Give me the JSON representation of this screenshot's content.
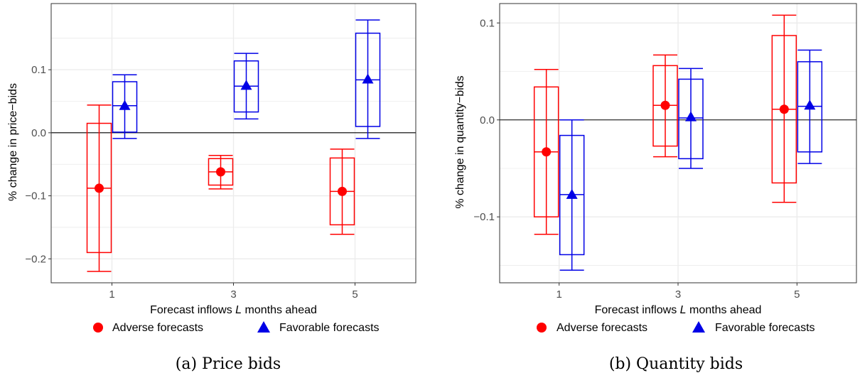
{
  "colors": {
    "adverse": "#ff0000",
    "favorable": "#0000e6",
    "grid": "#ebebeb",
    "zero_line": "#000000"
  },
  "legend": {
    "adverse_label": "Adverse forecasts",
    "favorable_label": "Favorable forecasts",
    "adverse_marker": "circle",
    "favorable_marker": "triangle"
  },
  "chart_data": [
    {
      "type": "boxplot",
      "caption": "(a) Price bids",
      "xlabel_pre": "Forecast inflows ",
      "xlabel_var": "L",
      "xlabel_post": " months ahead",
      "ylabel": "% change in price−bids",
      "categories": [
        "1",
        "3",
        "5"
      ],
      "ylim": [
        -0.238,
        0.205
      ],
      "yticks": [
        -0.2,
        -0.1,
        0.0,
        0.1
      ],
      "yticklabels": [
        "−0.2",
        "−0.1",
        "0.0",
        "0.1"
      ],
      "grid": true,
      "series": [
        {
          "name": "Adverse forecasts",
          "boxes": [
            {
              "whisker_low": -0.22,
              "box_low": -0.19,
              "median": -0.088,
              "box_high": 0.015,
              "whisker_high": 0.044,
              "point": -0.088
            },
            {
              "whisker_low": -0.089,
              "box_low": -0.083,
              "median": -0.062,
              "box_high": -0.041,
              "whisker_high": -0.036,
              "point": -0.062
            },
            {
              "whisker_low": -0.161,
              "box_low": -0.146,
              "median": -0.093,
              "box_high": -0.04,
              "whisker_high": -0.026,
              "point": -0.093
            }
          ]
        },
        {
          "name": "Favorable forecasts",
          "boxes": [
            {
              "whisker_low": -0.009,
              "box_low": 0.001,
              "median": 0.043,
              "box_high": 0.081,
              "whisker_high": 0.092,
              "point": 0.043
            },
            {
              "whisker_low": 0.022,
              "box_low": 0.033,
              "median": 0.074,
              "box_high": 0.114,
              "whisker_high": 0.126,
              "point": 0.075
            },
            {
              "whisker_low": -0.009,
              "box_low": 0.01,
              "median": 0.084,
              "box_high": 0.158,
              "whisker_high": 0.179,
              "point": 0.085
            }
          ]
        }
      ]
    },
    {
      "type": "boxplot",
      "caption": "(b) Quantity bids",
      "xlabel_pre": "Forecast inflows ",
      "xlabel_var": "L",
      "xlabel_post": " months ahead",
      "ylabel": "% change in quantity−bids",
      "categories": [
        "1",
        "3",
        "5"
      ],
      "ylim": [
        -0.168,
        0.12
      ],
      "yticks": [
        -0.1,
        0.0,
        0.1
      ],
      "yticklabels": [
        "−0.1",
        "0.0",
        "0.1"
      ],
      "grid": true,
      "series": [
        {
          "name": "Adverse forecasts",
          "boxes": [
            {
              "whisker_low": -0.118,
              "box_low": -0.1,
              "median": -0.033,
              "box_high": 0.034,
              "whisker_high": 0.052,
              "point": -0.033
            },
            {
              "whisker_low": -0.038,
              "box_low": -0.027,
              "median": 0.015,
              "box_high": 0.056,
              "whisker_high": 0.067,
              "point": 0.015
            },
            {
              "whisker_low": -0.085,
              "box_low": -0.065,
              "median": 0.011,
              "box_high": 0.087,
              "whisker_high": 0.108,
              "point": 0.011
            }
          ]
        },
        {
          "name": "Favorable forecasts",
          "boxes": [
            {
              "whisker_low": -0.155,
              "box_low": -0.139,
              "median": -0.077,
              "box_high": -0.016,
              "whisker_high": 0.0,
              "point": -0.077
            },
            {
              "whisker_low": -0.05,
              "box_low": -0.04,
              "median": 0.002,
              "box_high": 0.042,
              "whisker_high": 0.053,
              "point": 0.003
            },
            {
              "whisker_low": -0.045,
              "box_low": -0.033,
              "median": 0.014,
              "box_high": 0.06,
              "whisker_high": 0.072,
              "point": 0.015
            }
          ]
        }
      ]
    }
  ]
}
